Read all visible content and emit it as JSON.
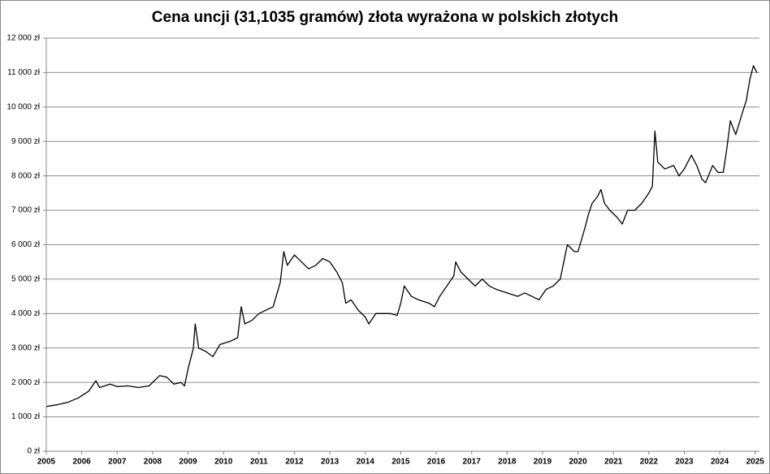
{
  "chart_data": {
    "type": "line",
    "title": "Cena uncji (31,1035 gramów) złota wyrażona w polskich złotych",
    "x": [
      2005.0,
      2005.3,
      2005.6,
      2005.9,
      2006.2,
      2006.4,
      2006.5,
      2006.8,
      2007.0,
      2007.3,
      2007.6,
      2007.9,
      2008.2,
      2008.4,
      2008.6,
      2008.8,
      2008.9,
      2009.0,
      2009.15,
      2009.2,
      2009.3,
      2009.5,
      2009.7,
      2009.9,
      2010.2,
      2010.4,
      2010.5,
      2010.6,
      2010.8,
      2011.0,
      2011.2,
      2011.4,
      2011.6,
      2011.7,
      2011.8,
      2012.0,
      2012.2,
      2012.4,
      2012.6,
      2012.8,
      2013.0,
      2013.2,
      2013.35,
      2013.45,
      2013.6,
      2013.8,
      2014.0,
      2014.1,
      2014.3,
      2014.5,
      2014.7,
      2014.9,
      2015.0,
      2015.1,
      2015.3,
      2015.5,
      2015.8,
      2015.95,
      2016.1,
      2016.3,
      2016.5,
      2016.55,
      2016.7,
      2016.9,
      2017.1,
      2017.3,
      2017.5,
      2017.7,
      2018.0,
      2018.3,
      2018.5,
      2018.7,
      2018.9,
      2019.1,
      2019.3,
      2019.5,
      2019.6,
      2019.7,
      2019.9,
      2020.0,
      2020.2,
      2020.3,
      2020.4,
      2020.55,
      2020.65,
      2020.75,
      2020.9,
      2021.1,
      2021.25,
      2021.4,
      2021.6,
      2021.8,
      2022.0,
      2022.1,
      2022.17,
      2022.25,
      2022.45,
      2022.7,
      2022.85,
      2023.0,
      2023.2,
      2023.35,
      2023.5,
      2023.6,
      2023.8,
      2023.95,
      2024.1,
      2024.2,
      2024.3,
      2024.45,
      2024.6,
      2024.75,
      2024.85,
      2024.95,
      2025.05
    ],
    "series": [
      {
        "color": "#000000",
        "values": [
          1300,
          1350,
          1420,
          1550,
          1750,
          2050,
          1850,
          1950,
          1880,
          1900,
          1850,
          1900,
          2200,
          2150,
          1950,
          2000,
          1900,
          2400,
          3000,
          3700,
          3000,
          2900,
          2750,
          3100,
          3200,
          3300,
          4200,
          3700,
          3800,
          4000,
          4100,
          4200,
          4900,
          5800,
          5400,
          5700,
          5500,
          5300,
          5400,
          5600,
          5500,
          5200,
          4900,
          4300,
          4400,
          4100,
          3900,
          3700,
          4000,
          4000,
          4000,
          3950,
          4300,
          4800,
          4500,
          4400,
          4300,
          4200,
          4500,
          4800,
          5100,
          5500,
          5200,
          5000,
          4800,
          5000,
          4800,
          4700,
          4600,
          4500,
          4600,
          4500,
          4400,
          4700,
          4800,
          5000,
          5500,
          6000,
          5800,
          5800,
          6500,
          6900,
          7200,
          7400,
          7600,
          7200,
          7000,
          6800,
          6600,
          7000,
          7000,
          7200,
          7500,
          7700,
          9300,
          8400,
          8200,
          8300,
          8000,
          8200,
          8600,
          8300,
          7900,
          7800,
          8300,
          8100,
          8100,
          8800,
          9600,
          9200,
          9700,
          10200,
          10800,
          11200,
          11000
        ]
      }
    ],
    "xlim": [
      2005,
      2025.12
    ],
    "xticks": [
      2005,
      2006,
      2007,
      2008,
      2009,
      2010,
      2011,
      2012,
      2013,
      2014,
      2015,
      2016,
      2017,
      2018,
      2019,
      2020,
      2021,
      2022,
      2023,
      2024,
      2025
    ],
    "ylim": [
      0,
      12000
    ],
    "yticks": [
      {
        "value": 0,
        "label": "0 zł"
      },
      {
        "value": 1000,
        "label": "1 000 zł"
      },
      {
        "value": 2000,
        "label": "2 000 zł"
      },
      {
        "value": 3000,
        "label": "3 000 zł"
      },
      {
        "value": 4000,
        "label": "4 000 zł"
      },
      {
        "value": 5000,
        "label": "5 000 zł"
      },
      {
        "value": 6000,
        "label": "6 000 zł"
      },
      {
        "value": 7000,
        "label": "7 000 zł"
      },
      {
        "value": 8000,
        "label": "8 000 zł"
      },
      {
        "value": 9000,
        "label": "9 000 zł"
      },
      {
        "value": 10000,
        "label": "10 000 zł"
      },
      {
        "value": 11000,
        "label": "11 000 zł"
      },
      {
        "value": 12000,
        "label": "12 000 zł"
      }
    ],
    "grid": true
  }
}
